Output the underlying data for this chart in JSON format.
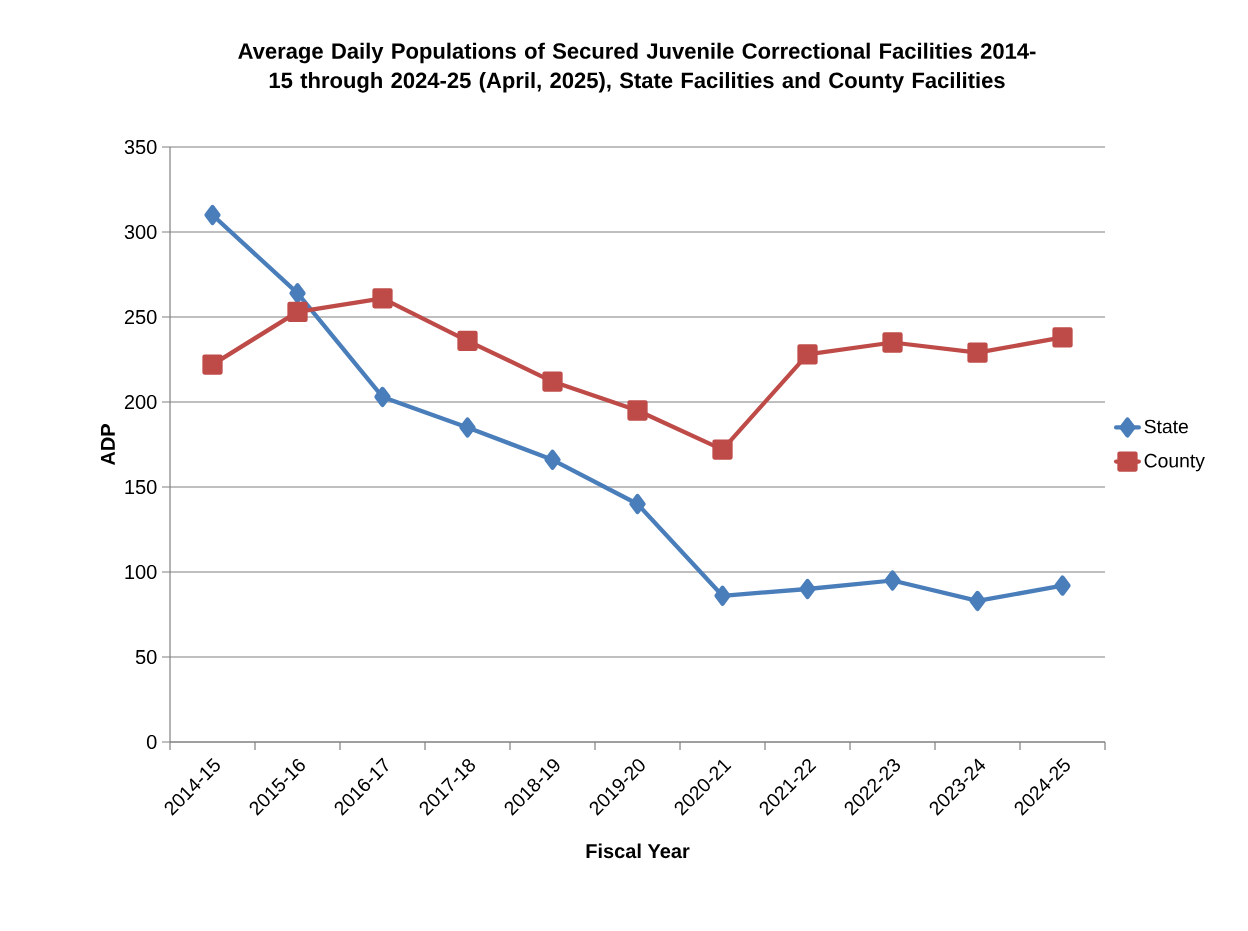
{
  "chart_data": {
    "type": "line",
    "title": "Average Daily Populations of Secured Juvenile Correctional Facilities 2014-15 through 2024-25 (April, 2025), State Facilities and County Facilities",
    "xlabel": "Fiscal Year",
    "ylabel": "ADP",
    "categories": [
      "2014-15",
      "2015-16",
      "2016-17",
      "2017-18",
      "2018-19",
      "2019-20",
      "2020-21",
      "2021-22",
      "2022-23",
      "2023-24",
      "2024-25"
    ],
    "series": [
      {
        "name": "State",
        "color": "#4a7ebb",
        "marker": "diamond",
        "values": [
          310,
          264,
          203,
          185,
          166,
          140,
          86,
          90,
          95,
          83,
          92
        ]
      },
      {
        "name": "County",
        "color": "#be4b48",
        "marker": "square",
        "values": [
          222,
          253,
          261,
          236,
          212,
          195,
          172,
          228,
          235,
          229,
          238
        ]
      }
    ],
    "ylim": [
      0,
      350
    ],
    "yticks": [
      0,
      50,
      100,
      150,
      200,
      250,
      300,
      350
    ],
    "grid": "y",
    "legend": "right",
    "line_style": "solid"
  }
}
